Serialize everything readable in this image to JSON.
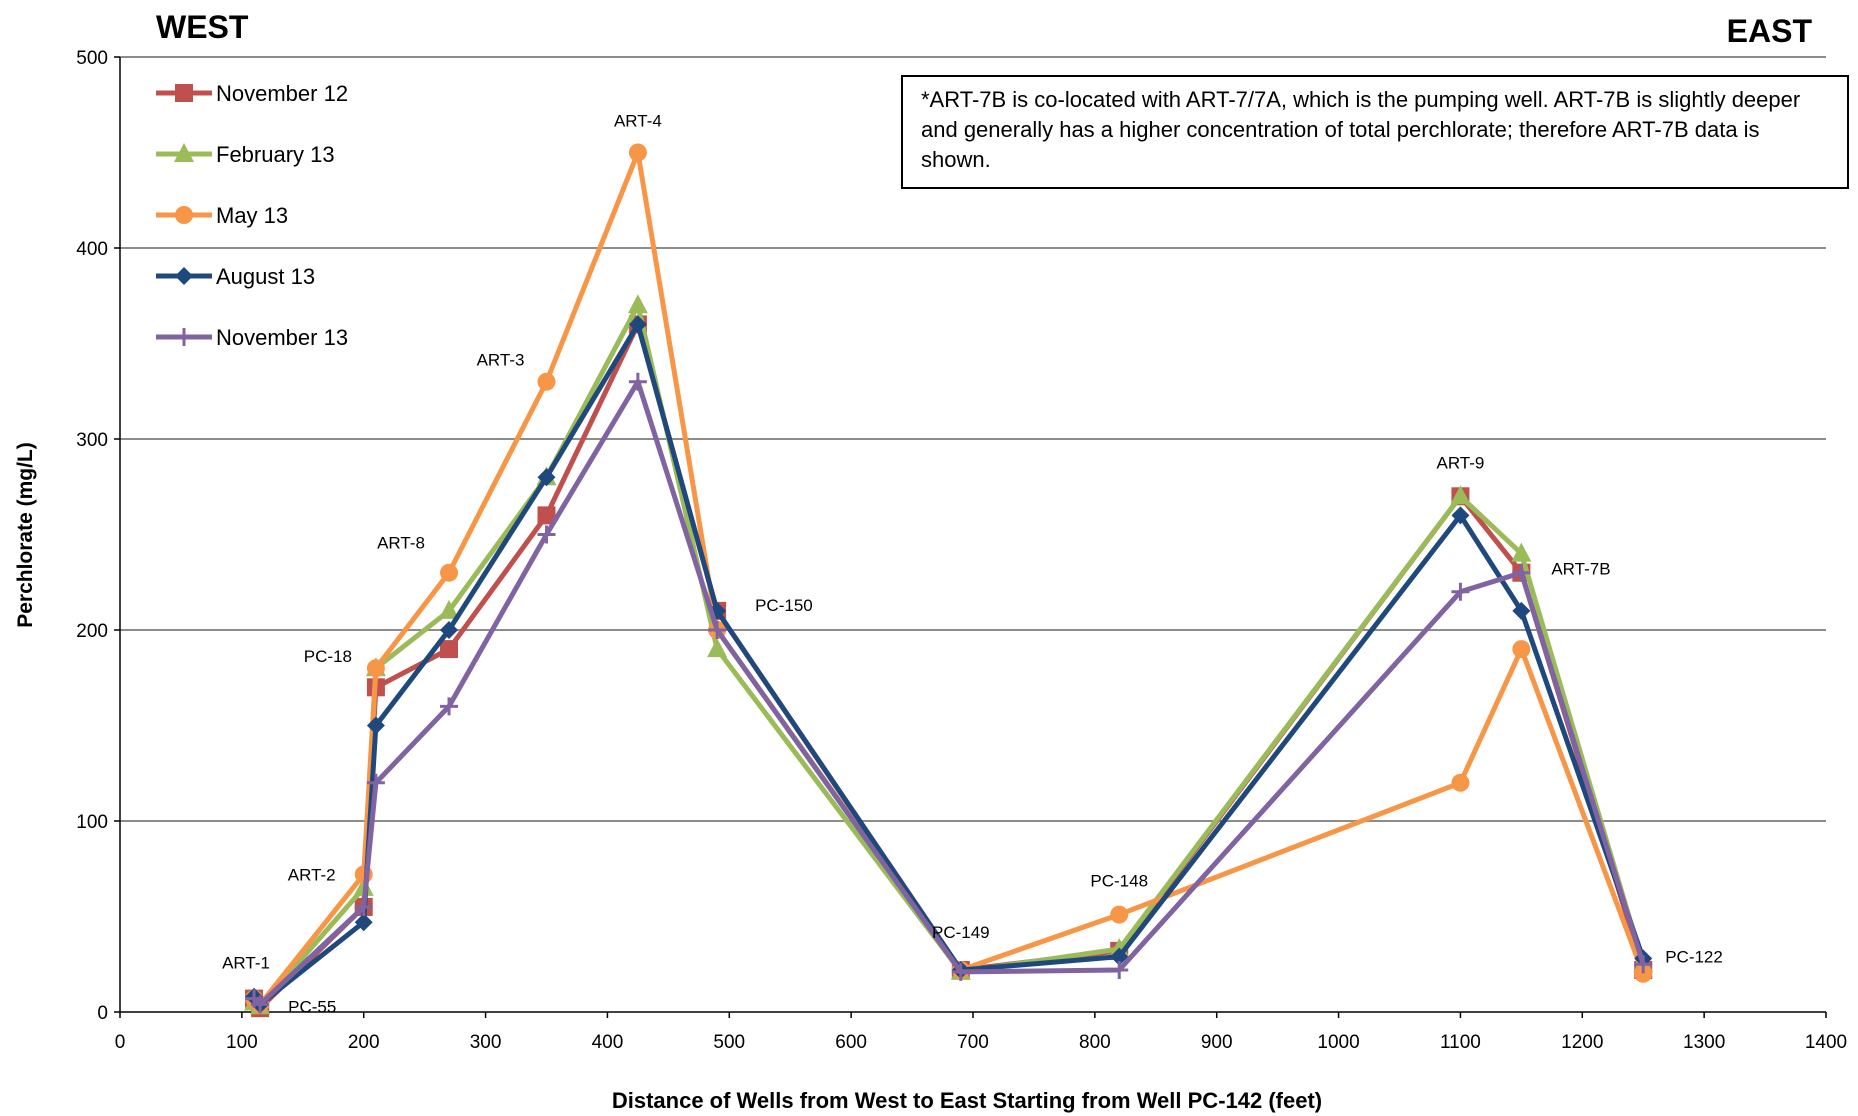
{
  "labels": {
    "west": "WEST",
    "east": "EAST",
    "ylabel": "Perchlorate (mg/L)",
    "xlabel": "Distance of Wells from West to East Starting from Well PC-142 (feet)"
  },
  "note": "*ART-7B is co-located with ART-7/7A, which is the pumping well. ART-7B is slightly deeper and generally has a higher concentration of total perchlorate; therefore ART-7B data is shown.",
  "chart_data": {
    "type": "line",
    "xlim": [
      0,
      1400
    ],
    "ylim": [
      0,
      500
    ],
    "xticks": [
      0,
      100,
      200,
      300,
      400,
      500,
      600,
      700,
      800,
      900,
      1000,
      1100,
      1200,
      1300,
      1400
    ],
    "yticks": [
      0,
      100,
      200,
      300,
      400,
      500
    ],
    "grid": "horizontal",
    "legend_position": "top-left",
    "x": [
      110,
      115,
      200,
      210,
      270,
      350,
      425,
      490,
      690,
      820,
      1100,
      1150,
      1250
    ],
    "well_labels": [
      {
        "text": "ART-1",
        "x": 110,
        "y": 7
      },
      {
        "text": "PC-55",
        "x": 115,
        "y": 3
      },
      {
        "text": "ART-2",
        "x": 200,
        "y": 72
      },
      {
        "text": "PC-18",
        "x": 210,
        "y": 180
      },
      {
        "text": "ART-8",
        "x": 270,
        "y": 230
      },
      {
        "text": "ART-3",
        "x": 350,
        "y": 330
      },
      {
        "text": "ART-4",
        "x": 425,
        "y": 450
      },
      {
        "text": "PC-150",
        "x": 490,
        "y": 210
      },
      {
        "text": "PC-149",
        "x": 690,
        "y": 22
      },
      {
        "text": "PC-148",
        "x": 820,
        "y": 51
      },
      {
        "text": "ART-9",
        "x": 1100,
        "y": 270
      },
      {
        "text": "ART-7B",
        "x": 1150,
        "y": 230
      },
      {
        "text": "PC-122",
        "x": 1250,
        "y": 28
      }
    ],
    "series": [
      {
        "name": "November 12",
        "color": "#c0504d",
        "marker": "square",
        "values": [
          7,
          2,
          55,
          170,
          190,
          260,
          360,
          210,
          22,
          32,
          270,
          230,
          22
        ]
      },
      {
        "name": "February 13",
        "color": "#9bbb59",
        "marker": "triangle",
        "values": [
          5,
          3,
          65,
          180,
          210,
          280,
          370,
          190,
          21,
          33,
          270,
          240,
          25
        ]
      },
      {
        "name": "May 13",
        "color": "#f79646",
        "marker": "circle",
        "values": [
          7,
          4,
          72,
          180,
          230,
          330,
          450,
          200,
          22,
          51,
          120,
          190,
          20
        ]
      },
      {
        "name": "August 13",
        "color": "#1f497d",
        "marker": "diamond",
        "values": [
          8,
          4,
          47,
          150,
          200,
          280,
          360,
          210,
          22,
          29,
          260,
          210,
          28
        ]
      },
      {
        "name": "November 13",
        "color": "#8064a2",
        "marker": "plus",
        "values": [
          7,
          4,
          55,
          120,
          160,
          250,
          330,
          200,
          21,
          22,
          220,
          230,
          25
        ]
      }
    ]
  }
}
